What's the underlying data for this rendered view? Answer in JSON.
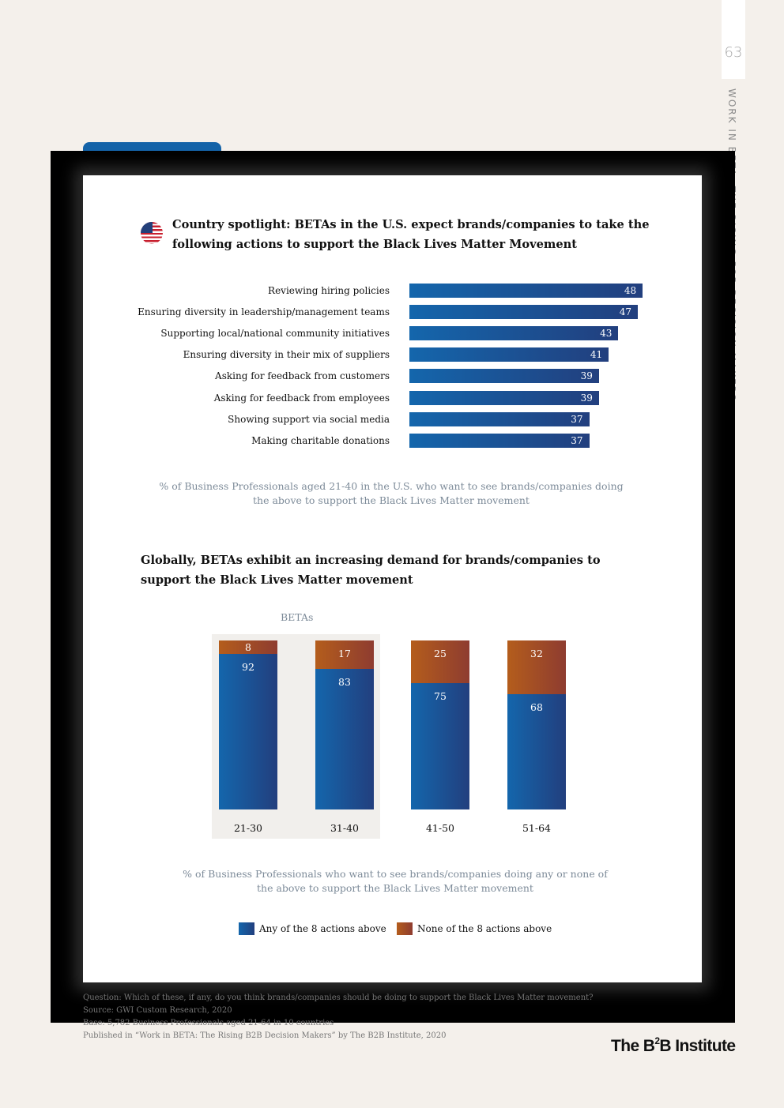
{
  "page": {
    "number": "63",
    "side_title": "WORK IN BETA: THE RISING B2B DECISION MAKERS"
  },
  "colors": {
    "any_actions": "#1466ac",
    "none_actions": "#b45d1c",
    "background": "#f4f0eb"
  },
  "chart_data": [
    {
      "type": "bar",
      "orientation": "horizontal",
      "title": "Country spotlight: BETAs in the U.S. expect brands/companies to take the following actions to support the Black Lives Matter Movement",
      "categories": [
        "Reviewing hiring policies",
        "Ensuring diversity in leadership/management teams",
        "Supporting local/national community initiatives",
        "Ensuring diversity in their mix of suppliers",
        "Asking for feedback from customers",
        "Asking for feedback from employees",
        "Showing support via social media",
        "Making charitable donations"
      ],
      "values": [
        48,
        47,
        43,
        41,
        39,
        39,
        37,
        37
      ],
      "xlim": [
        0,
        50
      ],
      "caption": "% of Business Professionals aged 21-40 in the U.S. who want to see brands/companies doing the above to support the Black Lives Matter movement"
    },
    {
      "type": "bar",
      "stacked": true,
      "title": "Globally, BETAs exhibit an increasing demand for brands/companies to support the Black Lives Matter movement",
      "group_label": "BETAs",
      "categories": [
        "21-30",
        "31-40",
        "41-50",
        "51-64"
      ],
      "series": [
        {
          "name": "Any of the 8 actions above",
          "values": [
            92,
            83,
            75,
            68
          ]
        },
        {
          "name": "None of the 8 actions above",
          "values": [
            8,
            17,
            25,
            32
          ]
        }
      ],
      "ylim": [
        0,
        100
      ],
      "caption": "% of Business Professionals who want to see brands/companies doing any or none of the above to support the Black Lives Matter movement"
    }
  ],
  "footnotes": [
    "Question: Which of these, if any, do you think brands/companies should be doing to support the Black Lives Matter movement?",
    "Source: GWI Custom Research, 2020",
    "Base: 5,782 Business Professionals aged 21-64 in 10 countries",
    "Published in “Work in BETA: The Rising B2B Decision Makers” by The B2B Institute, 2020"
  ],
  "logo": {
    "text_pre": "The B",
    "sup": "2",
    "text_post": "B Institute"
  }
}
